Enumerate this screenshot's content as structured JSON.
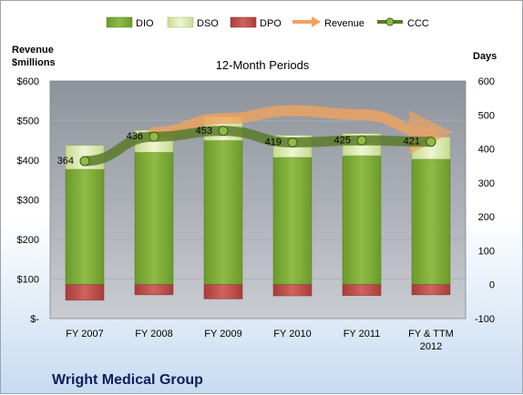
{
  "chart_data": {
    "type": "bar",
    "title": "12-Month Periods",
    "company": "Wright Medical Group",
    "left_axis_title": [
      "Revenue",
      "$millions"
    ],
    "right_axis_title": "Days",
    "categories": [
      "FY 2007",
      "FY 2008",
      "FY 2009",
      "FY 2010",
      "FY 2011",
      "FY & TTM 2012"
    ],
    "left_axis": {
      "min": 0,
      "max": 600,
      "ticks": [
        "$-",
        "$100",
        "$200",
        "$300",
        "$400",
        "$500",
        "$600"
      ]
    },
    "right_axis": {
      "min": -100,
      "max": 600,
      "ticks": [
        "-100",
        "0",
        "100",
        "200",
        "300",
        "400",
        "500",
        "600"
      ]
    },
    "legend": [
      "DIO",
      "DSO",
      "DPO",
      "Revenue",
      "CCC"
    ],
    "legend_position": "top",
    "series": [
      {
        "name": "DIO",
        "unit": "days",
        "values": [
          340,
          390,
          425,
          375,
          380,
          370
        ]
      },
      {
        "name": "DSO",
        "unit": "days",
        "values": [
          70,
          65,
          70,
          65,
          65,
          65
        ]
      },
      {
        "name": "DPO",
        "unit": "days",
        "values": [
          -46,
          -30,
          -42,
          -33,
          -32,
          -30
        ]
      },
      {
        "name": "Revenue",
        "unit": "$millions",
        "values": [
          null,
          470,
          505,
          525,
          515,
          470
        ]
      },
      {
        "name": "CCC",
        "unit": "days",
        "values": [
          364,
          436,
          453,
          419,
          425,
          421
        ]
      }
    ],
    "ccc_labels": [
      "364",
      "436",
      "453",
      "419",
      "425",
      "421"
    ],
    "colors": {
      "DIO": "#7ea83b",
      "DSO": "#d6e6a5",
      "DPO": "#c0504d",
      "Revenue": "#f0a35e",
      "CCC": "#5b7a2a"
    }
  }
}
